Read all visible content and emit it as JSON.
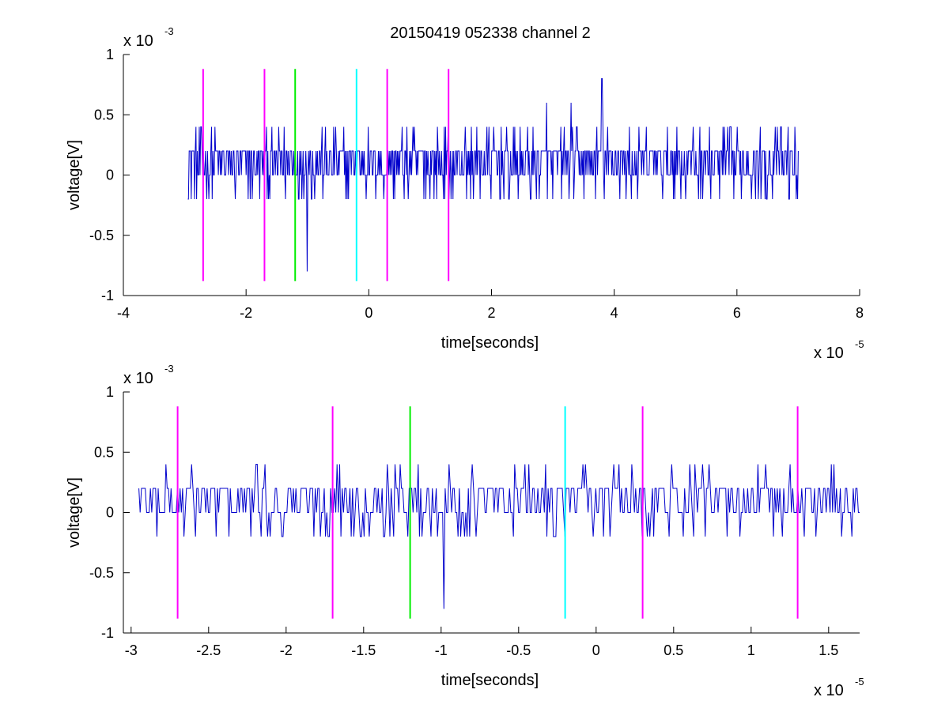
{
  "figure_title": "20150419 052338 channel 2",
  "chart_data": [
    {
      "type": "line",
      "title": "20150419 052338 channel 2",
      "xlabel": "time[seconds]",
      "ylabel": "voltage[V]",
      "xlim": [
        -4e-05,
        8e-05
      ],
      "ylim": [
        -0.001,
        0.001
      ],
      "x_ticks": [
        "-4",
        "-2",
        "0",
        "2",
        "4",
        "6",
        "8"
      ],
      "y_ticks": [
        "1",
        "0.5",
        "0",
        "-0.5",
        "-1"
      ],
      "x_multiplier": {
        "base": "x 10",
        "exp": "-5"
      },
      "y_multiplier": {
        "base": "x 10",
        "exp": "-3"
      },
      "series": [
        {
          "color": "#0000cc",
          "x_range": [
            -2.95e-05,
            7e-05
          ],
          "values_range": [
            -0.0008,
            0.0008
          ],
          "noise_levels": [
            -0.0002,
            0.0,
            0.0002,
            0.0004
          ],
          "peaks": [
            {
              "x": -1e-05,
              "y": -0.0008
            },
            {
              "x": 3.8e-05,
              "y": 0.0008
            },
            {
              "x": 2.9e-05,
              "y": 0.0006
            },
            {
              "x": 3.3e-05,
              "y": 0.0006
            }
          ]
        }
      ],
      "markers": [
        {
          "x": -2.7e-05,
          "color": "#ff00ff",
          "y_range": [
            -0.00088,
            0.00088
          ]
        },
        {
          "x": -1.7e-05,
          "color": "#ff00ff",
          "y_range": [
            -0.00088,
            0.00088
          ]
        },
        {
          "x": -1.2e-05,
          "color": "#00ee00",
          "y_range": [
            -0.00088,
            0.00088
          ]
        },
        {
          "x": -2e-06,
          "color": "#00ffff",
          "y_range": [
            -0.00088,
            0.00088
          ]
        },
        {
          "x": 3e-06,
          "color": "#ff00ff",
          "y_range": [
            -0.00088,
            0.00088
          ]
        },
        {
          "x": 1.3e-05,
          "color": "#ff00ff",
          "y_range": [
            -0.00088,
            0.00088
          ]
        }
      ]
    },
    {
      "type": "line",
      "title": "",
      "xlabel": "time[seconds]",
      "ylabel": "voltage[V]",
      "xlim": [
        -3.05e-05,
        1.7e-05
      ],
      "ylim": [
        -0.001,
        0.001
      ],
      "x_ticks": [
        "-3",
        "-2.5",
        "-2",
        "-1.5",
        "-1",
        "-0.5",
        "0",
        "0.5",
        "1",
        "1.5"
      ],
      "y_ticks": [
        "1",
        "0.5",
        "0",
        "-0.5",
        "-1"
      ],
      "x_multiplier": {
        "base": "x 10",
        "exp": "-5"
      },
      "y_multiplier": {
        "base": "x 10",
        "exp": "-3"
      },
      "series": [
        {
          "color": "#0000cc",
          "x_range": [
            -2.95e-05,
            1.7e-05
          ],
          "values_range": [
            -0.0008,
            0.0004
          ],
          "noise_levels": [
            -0.0002,
            0.0,
            0.0002,
            0.0004
          ],
          "peaks": [
            {
              "x": -9.8e-06,
              "y": -0.0008
            }
          ]
        }
      ],
      "markers": [
        {
          "x": -2.7e-05,
          "color": "#ff00ff",
          "y_range": [
            -0.00088,
            0.00088
          ]
        },
        {
          "x": -1.7e-05,
          "color": "#ff00ff",
          "y_range": [
            -0.00088,
            0.00088
          ]
        },
        {
          "x": -1.2e-05,
          "color": "#00ee00",
          "y_range": [
            -0.00088,
            0.00088
          ]
        },
        {
          "x": -2e-06,
          "color": "#00ffff",
          "y_range": [
            -0.00088,
            0.00088
          ]
        },
        {
          "x": 3e-06,
          "color": "#ff00ff",
          "y_range": [
            -0.00088,
            0.00088
          ]
        },
        {
          "x": 1.3e-05,
          "color": "#ff00ff",
          "y_range": [
            -0.00088,
            0.00088
          ]
        }
      ]
    }
  ]
}
